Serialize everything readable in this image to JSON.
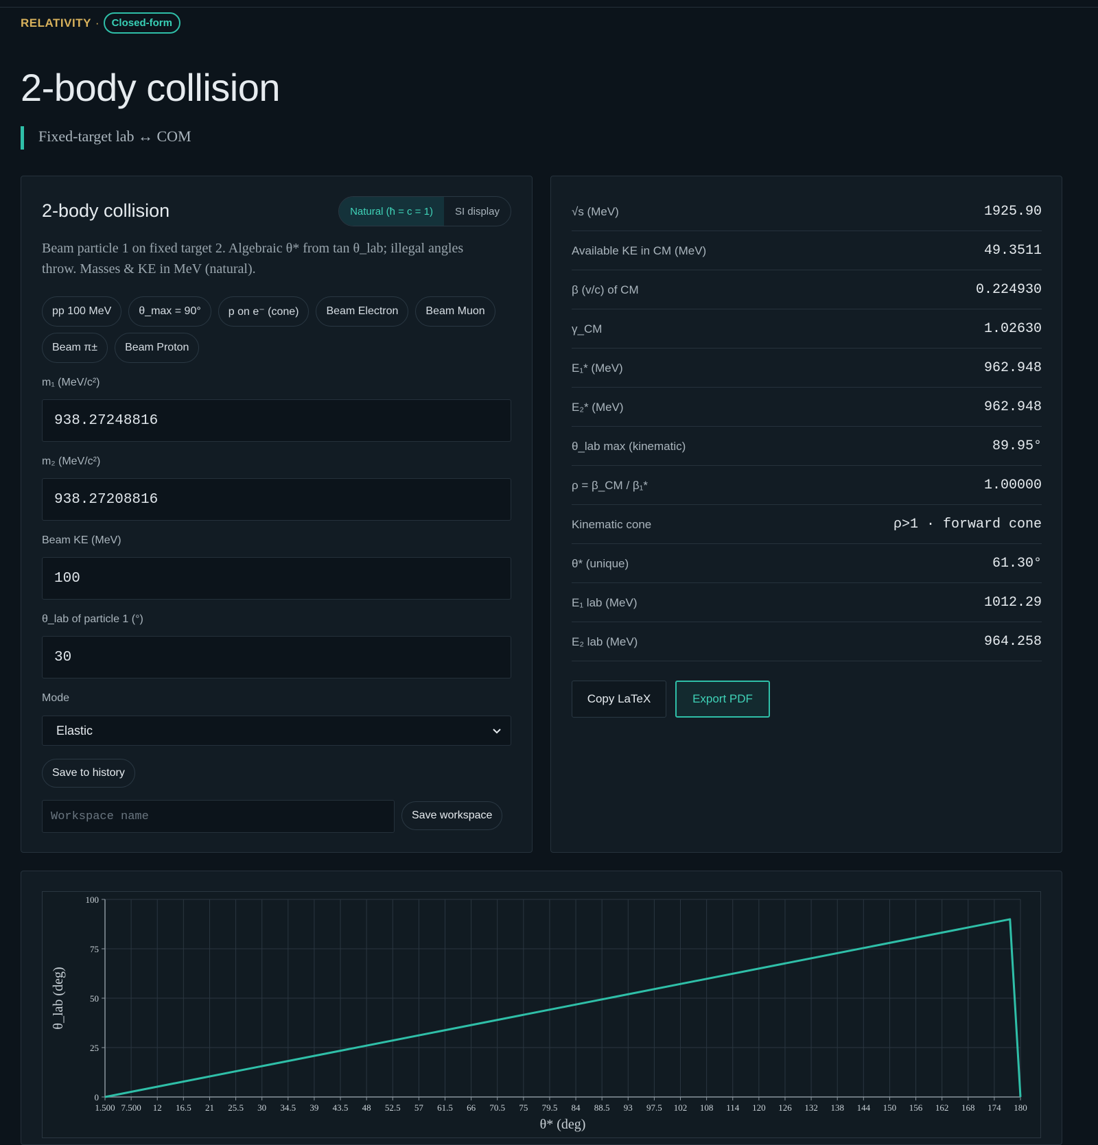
{
  "header": {
    "kicker": "RELATIVITY",
    "separator": "·",
    "badge": "Closed-form",
    "title": "2-body collision",
    "subtitle": "Fixed-target lab ↔ COM"
  },
  "panel": {
    "title": "2-body collision",
    "unit_toggle": {
      "natural": "Natural (ħ = c = 1)",
      "si": "SI display",
      "active": "natural"
    },
    "description": "Beam particle 1 on fixed target 2. Algebraic θ* from tan θ_lab; illegal angles throw. Masses & KE in MeV (natural).",
    "presets": [
      "pp 100 MeV",
      "θ_max = 90°",
      "p on e⁻ (cone)",
      "Beam Electron",
      "Beam Muon",
      "Beam π±",
      "Beam Proton"
    ],
    "fields": {
      "m1": {
        "label": "m₁ (MeV/c²)",
        "value": "938.27248816"
      },
      "m2": {
        "label": "m₂ (MeV/c²)",
        "value": "938.27208816"
      },
      "ke": {
        "label": "Beam KE (MeV)",
        "value": "100"
      },
      "theta": {
        "label": "θ_lab of particle 1 (°)",
        "value": "30"
      }
    },
    "mode": {
      "label": "Mode",
      "value": "Elastic"
    },
    "save_history": "Save to history",
    "workspace_placeholder": "Workspace name",
    "save_workspace": "Save workspace"
  },
  "results": {
    "rows": [
      {
        "label": "√s (MeV)",
        "value": "1925.90"
      },
      {
        "label": "Available KE in CM (MeV)",
        "value": "49.3511"
      },
      {
        "label": "β (v/c) of CM",
        "value": "0.224930"
      },
      {
        "label": "γ_CM",
        "value": "1.02630"
      },
      {
        "label": "E₁* (MeV)",
        "value": "962.948"
      },
      {
        "label": "E₂* (MeV)",
        "value": "962.948"
      },
      {
        "label": "θ_lab max (kinematic)",
        "value": "89.95°"
      },
      {
        "label": "ρ = β_CM / β₁*",
        "value": "1.00000"
      },
      {
        "label": "Kinematic cone",
        "value": "ρ>1 · forward cone"
      },
      {
        "label": "θ* (unique)",
        "value": "61.30°"
      },
      {
        "label": "E₁ lab (MeV)",
        "value": "1012.29"
      },
      {
        "label": "E₂ lab (MeV)",
        "value": "964.258"
      }
    ],
    "copy_latex": "Copy LaTeX",
    "export_pdf": "Export PDF"
  },
  "colors": {
    "accent": "#2fbfa8",
    "kicker": "#d9b25c",
    "background": "#0c141b",
    "panel": "#121c24"
  },
  "chart_data": {
    "type": "line",
    "xlabel": "θ* (deg)",
    "ylabel": "θ_lab (deg)",
    "x_ticks": [
      "1.500",
      "7.500",
      "12",
      "16.5",
      "21",
      "25.5",
      "30",
      "34.5",
      "39",
      "43.5",
      "48",
      "52.5",
      "57",
      "61.5",
      "66",
      "70.5",
      "75",
      "79.5",
      "84",
      "88.5",
      "93",
      "97.5",
      "102",
      "108",
      "114",
      "120",
      "126",
      "132",
      "138",
      "144",
      "150",
      "156",
      "162",
      "168",
      "174",
      "180"
    ],
    "y_ticks": [
      0,
      25,
      50,
      75,
      100
    ],
    "ylim": [
      0,
      100
    ],
    "grid": true,
    "series": [
      {
        "x_index": [
          0,
          34.6,
          35
        ],
        "y": [
          0,
          89.95,
          0
        ]
      }
    ]
  }
}
